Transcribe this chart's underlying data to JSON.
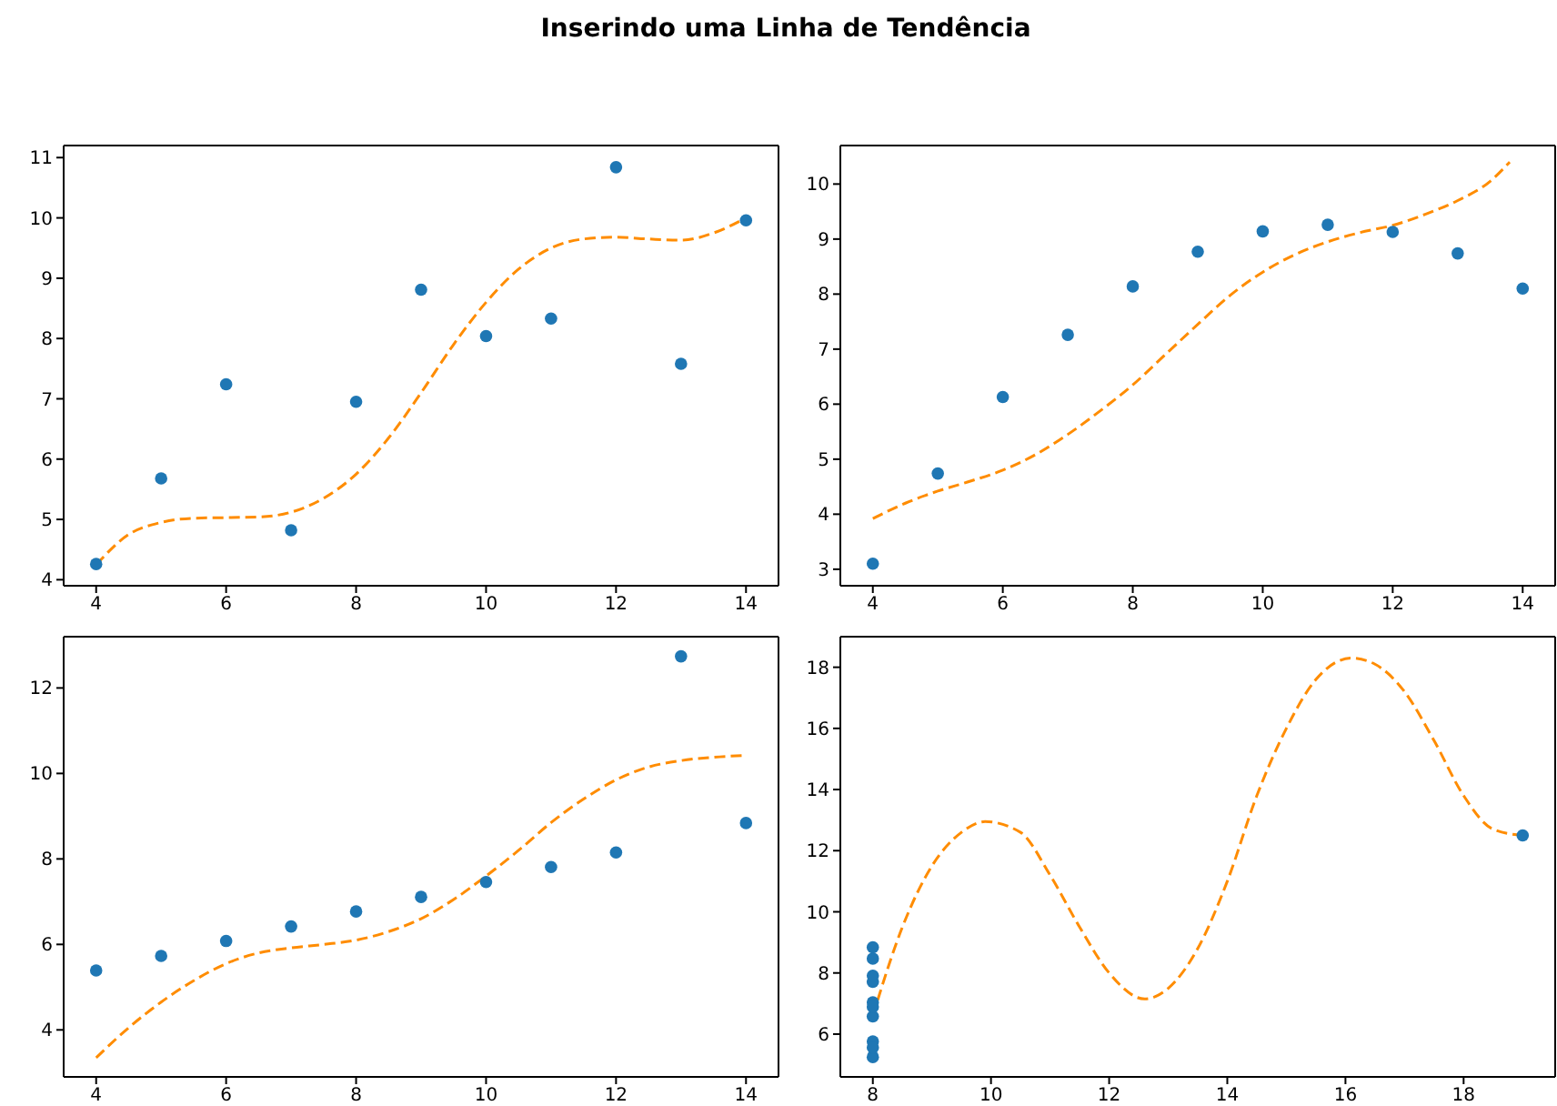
{
  "chart_data": [
    {
      "type": "scatter",
      "title": "Inserindo uma Linha de Tendência",
      "xlim": [
        3.5,
        14.5
      ],
      "xticks": [
        4,
        6,
        8,
        10,
        12,
        14
      ],
      "ylim": [
        3.9,
        11.2
      ],
      "yticks": [
        4,
        5,
        6,
        7,
        8,
        9,
        10,
        11
      ],
      "series": [
        {
          "marker": "circle",
          "color": "#1f77b4",
          "x": [
            10,
            8,
            13,
            9,
            11,
            14,
            6,
            4,
            12,
            7,
            5
          ],
          "values": [
            8.04,
            6.95,
            7.58,
            8.81,
            8.33,
            9.96,
            7.24,
            4.26,
            10.84,
            4.82,
            5.68
          ]
        },
        {
          "type": "line",
          "color": "#ff8c00",
          "line_style": "dashed",
          "x": [
            4,
            4.5,
            5,
            5.5,
            6,
            6.5,
            7,
            7.5,
            8,
            8.5,
            9,
            9.5,
            10,
            10.5,
            11,
            11.5,
            12,
            12.5,
            13,
            13.5,
            14
          ],
          "values": [
            4.25,
            4.75,
            4.95,
            5.02,
            5.03,
            5.04,
            5.12,
            5.35,
            5.75,
            6.35,
            7.1,
            7.9,
            8.6,
            9.15,
            9.5,
            9.65,
            9.68,
            9.65,
            9.63,
            9.75,
            10.0
          ]
        }
      ]
    },
    {
      "type": "scatter",
      "xlim": [
        3.5,
        14.5
      ],
      "xticks": [
        4,
        6,
        8,
        10,
        12,
        14
      ],
      "ylim": [
        2.7,
        10.7
      ],
      "yticks": [
        3,
        4,
        5,
        6,
        7,
        8,
        9,
        10
      ],
      "series": [
        {
          "marker": "circle",
          "color": "#1f77b4",
          "x": [
            10,
            8,
            13,
            9,
            11,
            14,
            6,
            4,
            12,
            7,
            5
          ],
          "values": [
            9.14,
            8.14,
            8.74,
            8.77,
            9.26,
            8.1,
            6.13,
            3.1,
            9.13,
            7.26,
            4.74
          ]
        },
        {
          "type": "line",
          "color": "#ff8c00",
          "line_style": "dashed",
          "x": [
            4,
            4.5,
            5,
            5.5,
            6,
            6.5,
            7,
            7.5,
            8,
            8.5,
            9,
            9.5,
            10,
            10.5,
            11,
            11.5,
            12,
            12.5,
            13,
            13.5,
            13.8
          ],
          "values": [
            3.92,
            4.2,
            4.42,
            4.6,
            4.8,
            5.08,
            5.45,
            5.88,
            6.35,
            6.9,
            7.45,
            7.98,
            8.4,
            8.72,
            8.95,
            9.12,
            9.25,
            9.45,
            9.7,
            10.05,
            10.4
          ]
        }
      ]
    },
    {
      "type": "scatter",
      "xlim": [
        3.5,
        14.5
      ],
      "xticks": [
        4,
        6,
        8,
        10,
        12,
        14
      ],
      "ylim": [
        2.9,
        13.2
      ],
      "yticks": [
        4,
        6,
        8,
        10,
        12
      ],
      "series": [
        {
          "marker": "circle",
          "color": "#1f77b4",
          "x": [
            10,
            8,
            13,
            9,
            11,
            14,
            6,
            4,
            12,
            7,
            5
          ],
          "values": [
            7.46,
            6.77,
            12.74,
            7.11,
            7.81,
            8.84,
            6.08,
            5.39,
            8.15,
            6.42,
            5.73
          ]
        },
        {
          "type": "line",
          "color": "#ff8c00",
          "line_style": "dashed",
          "x": [
            4,
            4.5,
            5,
            5.5,
            6,
            6.5,
            7,
            7.5,
            8,
            8.5,
            9,
            9.5,
            10,
            10.5,
            11,
            11.5,
            12,
            12.5,
            13,
            13.5,
            14
          ],
          "values": [
            3.35,
            4.05,
            4.65,
            5.15,
            5.55,
            5.8,
            5.92,
            6.0,
            6.1,
            6.3,
            6.6,
            7.05,
            7.6,
            8.2,
            8.85,
            9.4,
            9.85,
            10.15,
            10.3,
            10.38,
            10.42
          ]
        }
      ]
    },
    {
      "type": "scatter",
      "xlim": [
        7.45,
        19.55
      ],
      "xticks": [
        8,
        10,
        12,
        14,
        16,
        18
      ],
      "ylim": [
        4.6,
        19
      ],
      "yticks": [
        6,
        8,
        10,
        12,
        14,
        16,
        18
      ],
      "series": [
        {
          "marker": "circle",
          "color": "#1f77b4",
          "x": [
            8,
            8,
            8,
            8,
            8,
            8,
            8,
            19,
            8,
            8,
            8
          ],
          "values": [
            6.58,
            5.76,
            7.71,
            8.84,
            8.47,
            7.04,
            5.25,
            12.5,
            5.56,
            7.91,
            6.89
          ]
        },
        {
          "type": "line",
          "color": "#ff8c00",
          "line_style": "dashed",
          "x": [
            8,
            8.5,
            9,
            9.5,
            9.9,
            10.5,
            11,
            11.5,
            12,
            12.6,
            13,
            13.5,
            14,
            14.5,
            15,
            15.5,
            16.1,
            16.5,
            17,
            17.5,
            18,
            18.5,
            19
          ],
          "values": [
            6.6,
            9.5,
            11.5,
            12.6,
            12.95,
            12.6,
            11.2,
            9.5,
            8.0,
            7.15,
            7.5,
            8.8,
            11.0,
            13.8,
            16.0,
            17.6,
            18.3,
            18.1,
            17.2,
            15.6,
            13.8,
            12.7,
            12.5
          ]
        }
      ]
    }
  ]
}
